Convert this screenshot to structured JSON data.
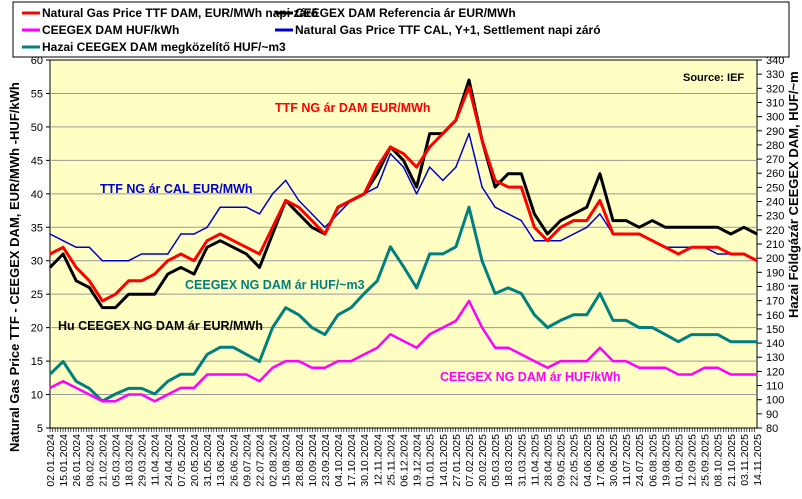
{
  "chart_data": {
    "type": "line",
    "legend": [
      {
        "key": "ttf_dam",
        "label": "Natural Gas Price TTF DAM, EUR/MWh napi záró",
        "color": "#ff0000"
      },
      {
        "key": "ceegex_ref",
        "label": "CEEGEX DAM Referencia ár  EUR/MWh",
        "color": "#000000"
      },
      {
        "key": "ceegex_huf_kwh",
        "label": "CEEGEX DAM HUF/kWh",
        "color": "#ff00ff"
      },
      {
        "key": "ttf_cal",
        "label": "Natural Gas Price TTF CAL, Y+1, Settlement napi záró",
        "color": "#0000cc"
      },
      {
        "key": "hazai_huf_m3",
        "label": "Hazai CEEGEX DAM megközelítő HUF/~m3",
        "color": "#007f7f"
      }
    ],
    "ylabel": "Natural Gas Price TTF - CEEGEX DAM, EUR/MWh -HUF/kWh",
    "y2label": "Hazai Földgázár CEEGEX DAM, HUF/~m",
    "ylim": [
      5,
      60
    ],
    "y2lim": [
      80,
      340
    ],
    "yticks": [
      5,
      10,
      15,
      20,
      25,
      30,
      35,
      40,
      45,
      50,
      55,
      60
    ],
    "y2ticks": [
      80,
      90,
      100,
      110,
      120,
      130,
      140,
      150,
      160,
      170,
      180,
      190,
      200,
      210,
      220,
      230,
      240,
      250,
      260,
      270,
      280,
      290,
      300,
      310,
      320,
      330,
      340
    ],
    "grid": true,
    "source": "Source: IEF",
    "annotations": [
      {
        "text": "TTF NG ár DAM EUR/MWh",
        "color": "#ff0000"
      },
      {
        "text": "TTF NG ár CAL EUR/MWh",
        "color": "#0000cc"
      },
      {
        "text": "CEEGEX NG DAM ár HUF/~m3",
        "color": "#007f7f"
      },
      {
        "text": "Hu CEEGEX NG DAM ár EUR/MWh",
        "color": "#000000"
      },
      {
        "text": "CEEGEX NG DAM ár HUF/kWh",
        "color": "#ff00ff"
      }
    ],
    "categories": [
      "02.01.2024",
      "15.01.2024",
      "26.01.2024",
      "08.02.2024",
      "21.02.2024",
      "05.03.2024",
      "18.03.2024",
      "29.03.2024",
      "11.04.2024",
      "24.04.2024",
      "07.05.2024",
      "20.05.2024",
      "31.05.2024",
      "13.06.2024",
      "26.06.2024",
      "09.07.2024",
      "22.07.2024",
      "02.08.2024",
      "15.08.2024",
      "28.08.2024",
      "10.09.2024",
      "23.09.2024",
      "04.10.2024",
      "17.10.2024",
      "30.10.2024",
      "12.11.2024",
      "25.11.2024",
      "06.12.2024",
      "19.12.2024",
      "01.01.2025",
      "14.01.2025",
      "27.01.2025",
      "07.02.2025",
      "20.02.2025",
      "05.03.2025",
      "18.03.2025",
      "31.03.2025",
      "11.04.2025",
      "28.04.2025",
      "09.05.2025",
      "22.05.2025",
      "04.06.2025",
      "17.06.2025",
      "30.06.2025",
      "11.07.2025",
      "24.07.2025",
      "06.08.2025",
      "19.08.2025",
      "01.09.2025",
      "12.09.2025",
      "25.09.2025",
      "08.10.2025",
      "21.10.2025",
      "03.11.2025",
      "14.11.2025"
    ],
    "series": [
      {
        "key": "hazai_huf_m3",
        "axis": "right",
        "values": [
          118,
          127,
          113,
          108,
          99,
          104,
          108,
          108,
          104,
          113,
          118,
          118,
          132,
          137,
          137,
          132,
          127,
          151,
          165,
          160,
          151,
          146,
          160,
          165,
          175,
          184,
          208,
          194,
          179,
          203,
          203,
          208,
          236,
          198,
          175,
          179,
          175,
          160,
          151,
          156,
          160,
          160,
          175,
          156,
          156,
          151,
          151,
          146,
          141,
          146,
          146,
          146,
          141,
          141,
          141
        ]
      },
      {
        "key": "ceegex_huf_kwh",
        "axis": "left",
        "values": [
          11,
          12,
          11,
          10,
          9,
          9,
          10,
          10,
          9,
          10,
          11,
          11,
          13,
          13,
          13,
          13,
          12,
          14,
          15,
          15,
          14,
          14,
          15,
          15,
          16,
          17,
          19,
          18,
          17,
          19,
          20,
          21,
          24,
          20,
          17,
          17,
          16,
          15,
          14,
          15,
          15,
          15,
          17,
          15,
          15,
          14,
          14,
          14,
          13,
          13,
          14,
          14,
          13,
          13,
          13
        ]
      },
      {
        "key": "ttf_cal",
        "axis": "left",
        "values": [
          34,
          33,
          32,
          32,
          30,
          30,
          30,
          31,
          31,
          31,
          34,
          34,
          35,
          38,
          38,
          38,
          37,
          40,
          42,
          39,
          37,
          35,
          37,
          39,
          40,
          41,
          46,
          44,
          40,
          44,
          42,
          44,
          49,
          41,
          38,
          37,
          36,
          33,
          33,
          33,
          34,
          35,
          37,
          34,
          34,
          34,
          33,
          32,
          32,
          32,
          32,
          31,
          31,
          31,
          30
        ]
      },
      {
        "key": "ceegex_ref",
        "axis": "left",
        "values": [
          29,
          31,
          27,
          26,
          23,
          23,
          25,
          25,
          25,
          28,
          29,
          28,
          32,
          33,
          32,
          31,
          29,
          34,
          39,
          37,
          35,
          34,
          38,
          39,
          40,
          43,
          47,
          45,
          41,
          49,
          49,
          51,
          57,
          48,
          41,
          43,
          43,
          37,
          34,
          36,
          37,
          38,
          43,
          36,
          36,
          35,
          36,
          35,
          35,
          35,
          35,
          35,
          34,
          35,
          34
        ]
      },
      {
        "key": "ttf_dam",
        "axis": "left",
        "values": [
          31,
          32,
          29,
          27,
          24,
          25,
          27,
          27,
          28,
          30,
          31,
          30,
          33,
          34,
          33,
          32,
          31,
          35,
          39,
          38,
          36,
          34,
          38,
          39,
          40,
          44,
          47,
          46,
          44,
          47,
          49,
          51,
          56,
          48,
          42,
          41,
          41,
          35,
          33,
          35,
          36,
          36,
          39,
          34,
          34,
          34,
          33,
          32,
          31,
          32,
          32,
          32,
          31,
          31,
          30
        ]
      }
    ]
  }
}
